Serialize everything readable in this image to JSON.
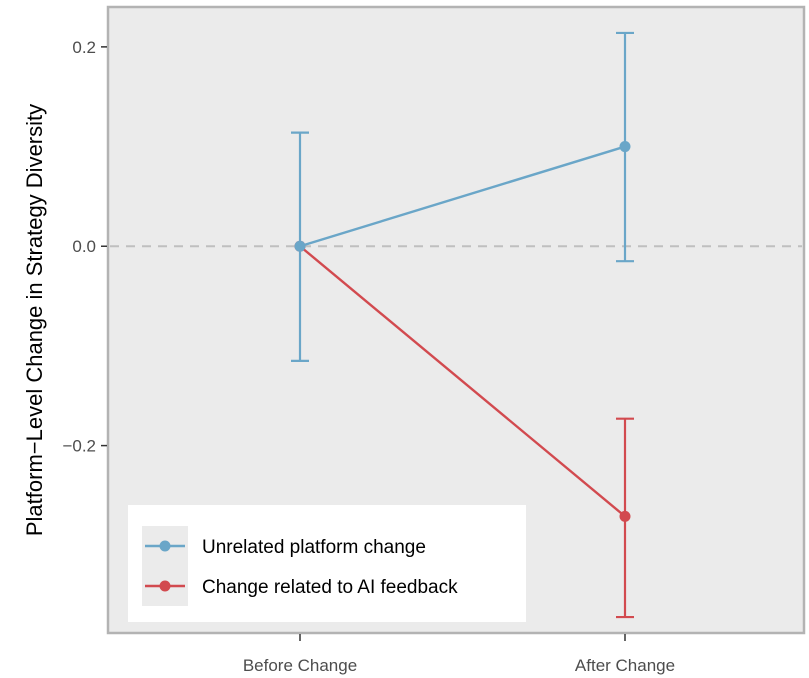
{
  "chart_data": {
    "type": "line",
    "categories": [
      "Before Change",
      "After Change"
    ],
    "ylabel": "Platform−Level Change in Strategy Diversity",
    "xlabel": "",
    "ylim": [
      -0.388,
      0.24
    ],
    "yticks": [
      -0.2,
      0.0,
      0.2
    ],
    "ytick_labels": [
      "−0.2",
      "0.0",
      "0.2"
    ],
    "reference_line": 0.0,
    "grid": false,
    "legend_position": "bottom-left",
    "series": [
      {
        "name": "Unrelated platform change",
        "color": "#6aa6c8",
        "values": [
          0.0,
          0.1
        ],
        "lower": [
          -0.115,
          -0.015
        ],
        "upper": [
          0.114,
          0.214
        ]
      },
      {
        "name": "Change related to AI feedback",
        "color": "#d24a4f",
        "values": [
          0.0,
          -0.271
        ],
        "lower": [
          0.0,
          -0.372
        ],
        "upper": [
          0.0,
          -0.173
        ]
      }
    ]
  }
}
